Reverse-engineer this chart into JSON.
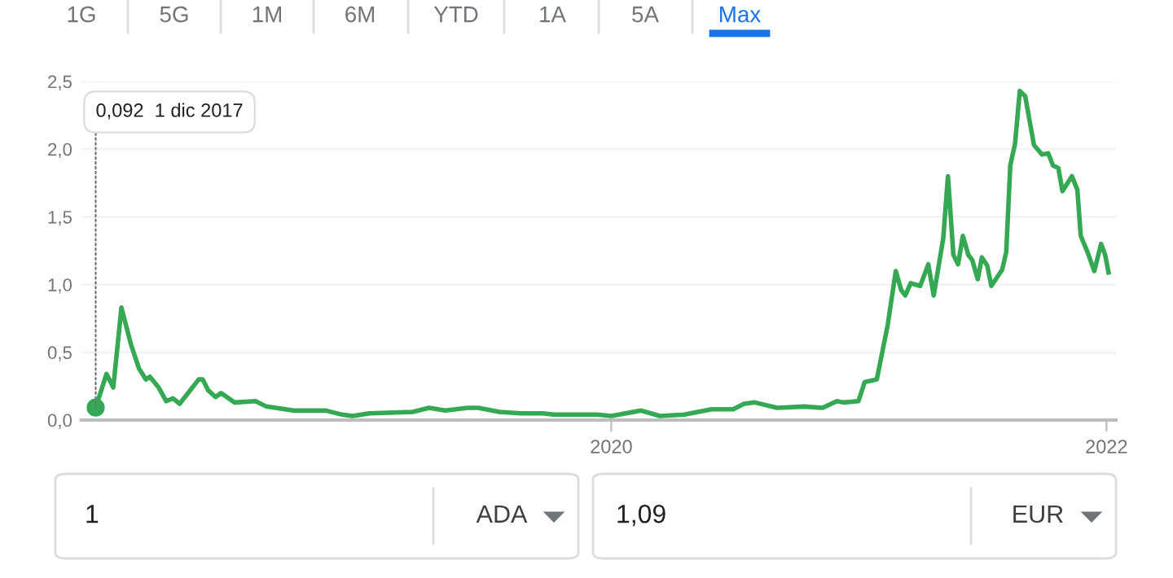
{
  "chart_data": {
    "type": "line",
    "x": [
      "2017-12-01",
      "2017-12-17",
      "2017-12-27",
      "2018-01-08",
      "2018-01-22",
      "2018-02-03",
      "2018-02-13",
      "2018-02-19",
      "2018-03-04",
      "2018-03-15",
      "2018-03-25",
      "2018-04-04",
      "2018-05-02",
      "2018-05-08",
      "2018-05-16",
      "2018-05-27",
      "2018-06-04",
      "2018-06-24",
      "2018-07-25",
      "2018-08-10",
      "2018-09-19",
      "2018-11-06",
      "2018-11-30",
      "2018-12-15",
      "2019-01-09",
      "2019-03-14",
      "2019-04-07",
      "2019-05-01",
      "2019-06-03",
      "2019-06-19",
      "2019-07-20",
      "2019-08-21",
      "2019-09-22",
      "2019-10-08",
      "2019-12-11",
      "2020-01-01",
      "2020-02-14",
      "2020-03-13",
      "2020-04-18",
      "2020-05-28",
      "2020-06-29",
      "2020-07-15",
      "2020-07-31",
      "2020-09-02",
      "2020-10-12",
      "2020-11-08",
      "2020-11-29",
      "2020-12-09",
      "2020-12-31",
      "2021-01-09",
      "2021-01-27",
      "2021-02-12",
      "2021-02-24",
      "2021-03-04",
      "2021-03-10",
      "2021-03-18",
      "2021-04-01",
      "2021-04-13",
      "2021-04-21",
      "2021-05-05",
      "2021-05-12",
      "2021-05-20",
      "2021-05-27",
      "2021-06-03",
      "2021-06-11",
      "2021-06-17",
      "2021-06-25",
      "2021-07-01",
      "2021-07-09",
      "2021-07-15",
      "2021-07-31",
      "2021-08-06",
      "2021-08-12",
      "2021-08-19",
      "2021-08-26",
      "2021-09-03",
      "2021-09-16",
      "2021-09-28",
      "2021-10-07",
      "2021-10-14",
      "2021-10-22",
      "2021-10-28",
      "2021-11-11",
      "2021-11-19",
      "2021-11-24",
      "2021-12-04",
      "2021-12-14",
      "2021-12-24",
      "2021-12-30",
      "2022-01-04"
    ],
    "series": [
      {
        "color": "#34a853",
        "values": [
          0.092,
          0.34,
          0.24,
          0.83,
          0.56,
          0.38,
          0.3,
          0.32,
          0.24,
          0.14,
          0.16,
          0.12,
          0.3,
          0.3,
          0.22,
          0.17,
          0.2,
          0.13,
          0.14,
          0.1,
          0.07,
          0.07,
          0.04,
          0.03,
          0.05,
          0.06,
          0.09,
          0.07,
          0.09,
          0.09,
          0.06,
          0.05,
          0.05,
          0.04,
          0.04,
          0.03,
          0.07,
          0.03,
          0.04,
          0.08,
          0.08,
          0.12,
          0.13,
          0.09,
          0.1,
          0.09,
          0.14,
          0.13,
          0.14,
          0.28,
          0.3,
          0.7,
          1.1,
          0.96,
          0.92,
          1.01,
          0.99,
          1.15,
          0.92,
          1.34,
          1.8,
          1.22,
          1.15,
          1.36,
          1.22,
          1.18,
          1.04,
          1.2,
          1.14,
          0.99,
          1.11,
          1.24,
          1.88,
          2.04,
          2.43,
          2.39,
          2.03,
          1.96,
          1.97,
          1.88,
          1.86,
          1.69,
          1.8,
          1.7,
          1.36,
          1.24,
          1.1,
          1.3,
          1.22,
          1.09
        ]
      }
    ],
    "xlim": [
      "2017-11-10",
      "2022-01-15"
    ],
    "xticks": [
      {
        "value": "2020-01-01",
        "label": "2020"
      },
      {
        "value": "2022-01-01",
        "label": "2022"
      }
    ],
    "ylim": [
      0,
      2.5
    ],
    "yticks": [
      {
        "value": 0,
        "label": "0,0"
      },
      {
        "value": 0.5,
        "label": "0,5"
      },
      {
        "value": 1,
        "label": "1,0"
      },
      {
        "value": 1.5,
        "label": "1,5"
      },
      {
        "value": 2,
        "label": "2,0"
      },
      {
        "value": 2.5,
        "label": "2,5"
      }
    ],
    "grid": "y",
    "legend": false,
    "line_style": "solid",
    "annotations": [
      {
        "text": "0,092  1 dic 2017",
        "x": "2017-12-01",
        "y": 0.092
      },
      "1G",
      "5G",
      "1M",
      "6M",
      "YTD",
      "1A",
      "5A",
      "Max",
      "1",
      "ADA",
      "1,09",
      "EUR"
    ]
  }
}
